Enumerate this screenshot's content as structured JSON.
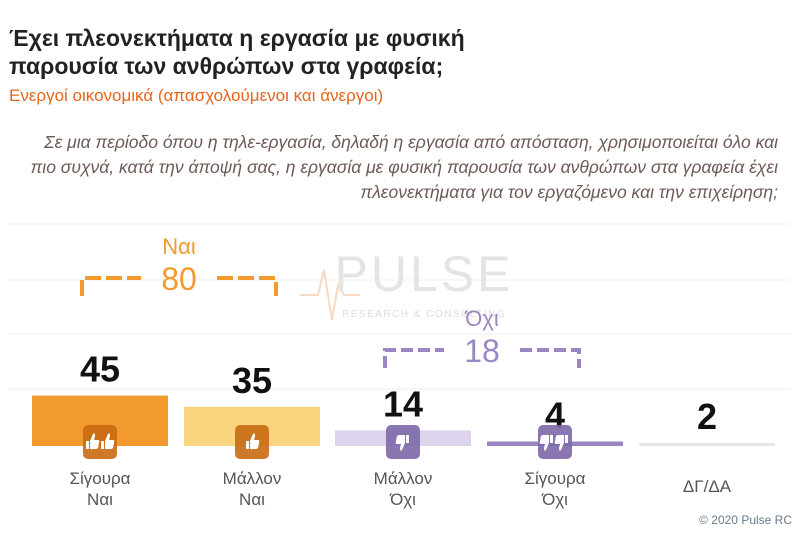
{
  "title": "Έχει πλεονεκτήματα η εργασία με φυσική παρουσία των ανθρώπων στα γραφεία;",
  "subtitle": "Ενεργοί οικονομικά  (απασχολούμενοι και άνεργοι)",
  "question": "Σε μια περίοδο όπου η τηλε-εργασία, δηλαδή η εργασία από απόσταση, χρησιμοποιείται όλο και πιο συχνά, κατά την άποψή σας, η εργασία με φυσική παρουσία των ανθρώπων στα γραφεία έχει πλεονεκτήματα για τον εργαζόμενο και την επιχείρηση;",
  "credit": "© 2020 Pulse RC",
  "watermark": {
    "name": "PULSE",
    "tagline": "RESEARCH & CONSULTING"
  },
  "chart_data": {
    "type": "bar",
    "categories": [
      "Σίγουρα\nΝαι",
      "Μάλλον\nΝαι",
      "Μάλλον\nΌχι",
      "Σίγουρα\nΌχι",
      "ΔΓ/ΔΑ"
    ],
    "values": [
      45,
      35,
      14,
      4,
      2
    ],
    "colors": [
      "#f29a2e",
      "#fad47f",
      "#ddd3ec",
      "#9b86c4",
      "#e6e6e6"
    ],
    "icons": [
      "double-thumbs-up-icon",
      "thumbs-up-icon",
      "thumbs-down-icon",
      "double-thumbs-down-icon",
      ""
    ],
    "ylim": [
      0,
      100
    ],
    "gridlines": true,
    "groups": [
      {
        "label": "Ναι",
        "value": 80,
        "color": "#f29a2e",
        "from": 0,
        "to": 1
      },
      {
        "label": "Όχι",
        "value": 18,
        "color": "#9b86c4",
        "from": 2,
        "to": 3
      }
    ]
  }
}
